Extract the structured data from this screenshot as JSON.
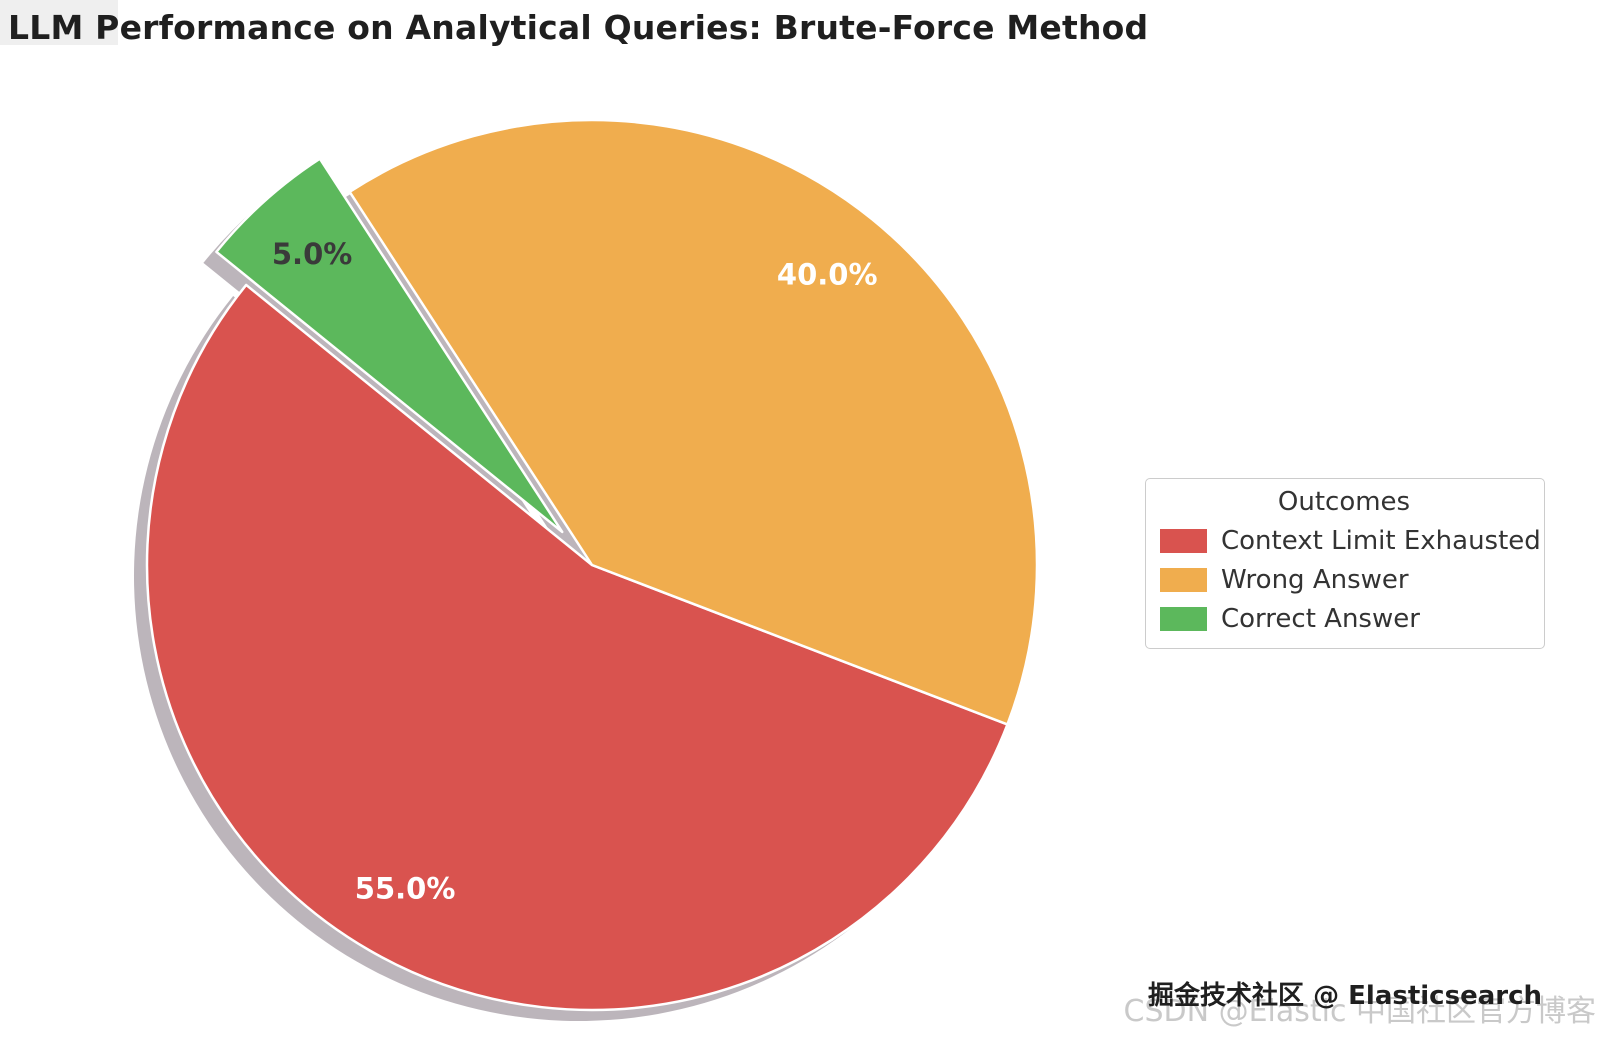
{
  "page": {
    "title": "LLM Performance on Analytical Queries: Brute-Force Method"
  },
  "chart_data": {
    "type": "pie",
    "title": "LLM Performance on Analytical Queries: Brute-Force Method",
    "legend_title": "Outcomes",
    "legend_position": "center right",
    "start_angle": 141,
    "direction": "counterclockwise",
    "shadow": true,
    "slices": [
      {
        "label": "Context Limit Exhausted",
        "value": 55.0,
        "pct_label": "55.0%",
        "color": "#d9534f",
        "explode": 0,
        "pct_color": "#ffffff"
      },
      {
        "label": "Wrong Answer",
        "value": 40.0,
        "pct_label": "40.0%",
        "color": "#f0ad4e",
        "explode": 0,
        "pct_color": "#ffffff"
      },
      {
        "label": "Correct Answer",
        "value": 5.0,
        "pct_label": "5.0%",
        "color": "#5cb85c",
        "explode": 0.1,
        "pct_color": "#3a3a3a"
      }
    ]
  },
  "colors": {
    "shadow": "#988e96",
    "slice_border": "#ffffff",
    "title_text": "#1f1f1f",
    "legend_text": "#333333"
  },
  "watermarks": {
    "gray": "CSDN @Elastic 中国社区官方博客",
    "dark": "掘金技术社区 @ Elasticsearch"
  }
}
